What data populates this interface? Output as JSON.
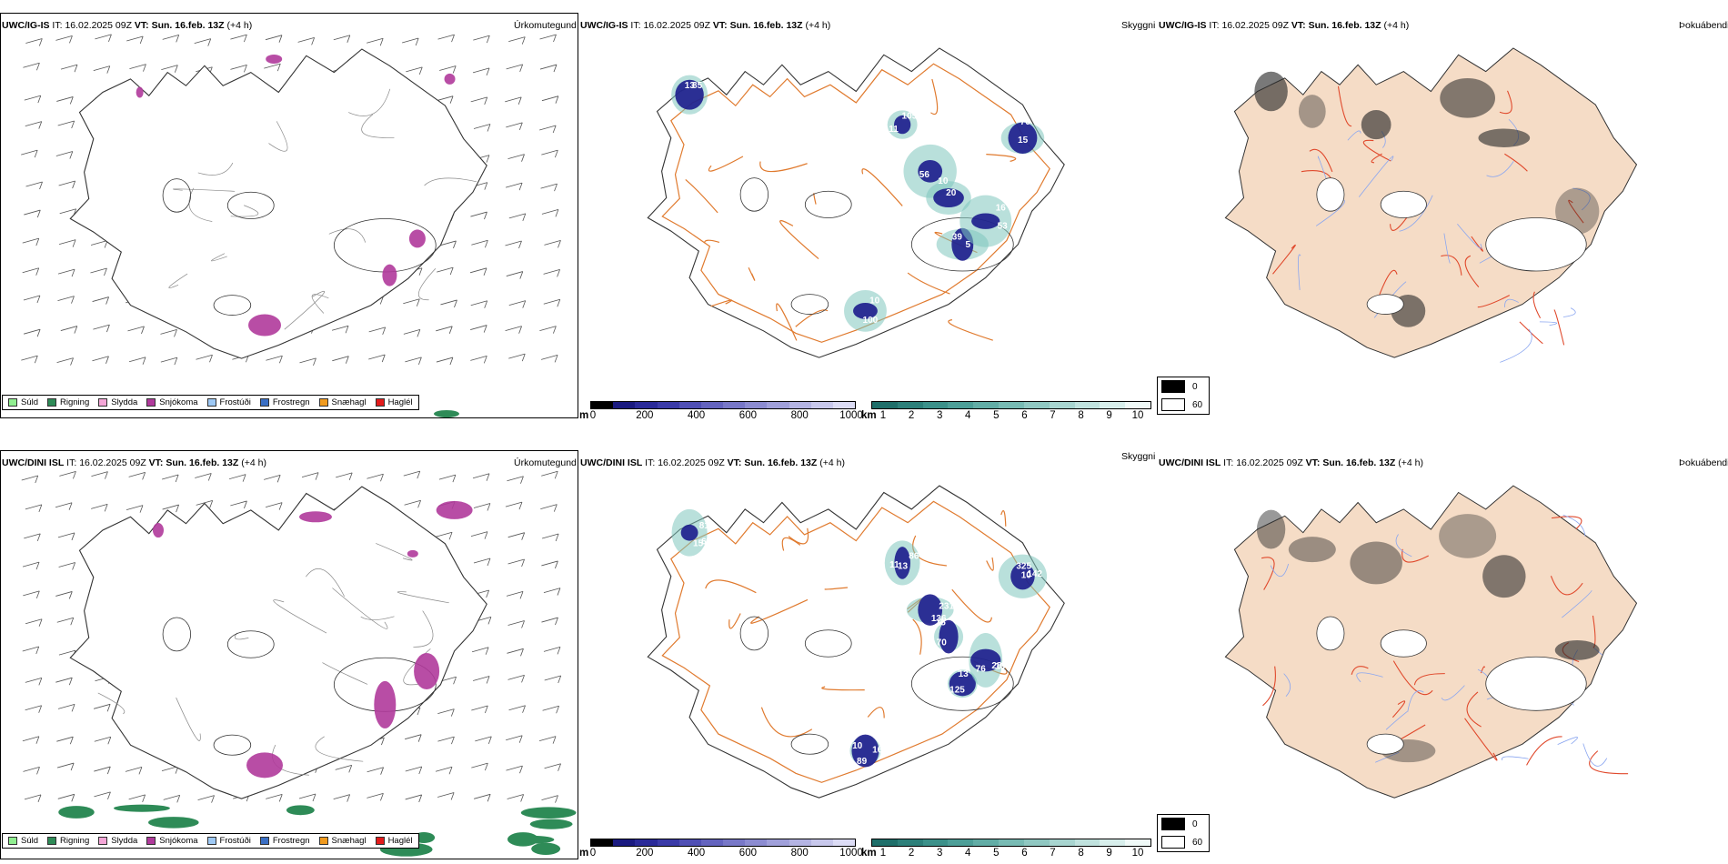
{
  "rows": [
    {
      "model": "UWC/IG-IS",
      "it_label": "IT:",
      "it_value": "16.02.2025 09Z",
      "vt_label": "VT:",
      "vt_value": "Sun. 16.feb. 13Z",
      "lead": "(+4 h)",
      "titles": {
        "precip": "Úrkomutegund",
        "visibility": "Skyggni",
        "cloud": "Þokuábendi"
      },
      "labels": [
        "100",
        "39",
        "53",
        "105",
        "85",
        "70",
        "56",
        "20",
        "10",
        "5",
        "16",
        "11",
        "13",
        "15",
        "10"
      ]
    },
    {
      "model": "UWC/DINI ISL",
      "it_label": "IT:",
      "it_value": "16.02.2025 09Z",
      "vt_label": "VT:",
      "vt_value": "Sun. 16.feb. 13Z",
      "lead": "(+4 h)",
      "titles": {
        "precip": "Úrkomutegund",
        "visibility": "Skyggni",
        "cloud": "Þokuábendi"
      },
      "labels": [
        "160",
        "125",
        "76",
        "86",
        "66",
        "142",
        "231",
        "70",
        "89",
        "13",
        "28",
        "11",
        "15",
        "325",
        "136",
        "15",
        "10",
        "22",
        "100",
        "13",
        "81",
        "10"
      ]
    }
  ],
  "precip_legend": [
    {
      "label": "Súld",
      "color": "#90ee90"
    },
    {
      "label": "Rigning",
      "color": "#2e8b57"
    },
    {
      "label": "Slydda",
      "color": "#f4a6d7"
    },
    {
      "label": "Snjókoma",
      "color": "#b03a9b"
    },
    {
      "label": "Frostúði",
      "color": "#9ec9f5"
    },
    {
      "label": "Frostregn",
      "color": "#3a6fc4"
    },
    {
      "label": "Snæhagl",
      "color": "#f09a1e"
    },
    {
      "label": "Haglél",
      "color": "#e31b1b"
    }
  ],
  "height_scale": {
    "unit": "m",
    "ticks": [
      "0",
      "200",
      "400",
      "600",
      "800",
      "1000"
    ],
    "colors": [
      "#000000",
      "#1a1a80",
      "#2a2a99",
      "#3b3ba8",
      "#5050b5",
      "#6464bf",
      "#7878c8",
      "#8c8cd1",
      "#a0a0da",
      "#b4b4e3",
      "#c8c8ec",
      "#dcdcf5"
    ]
  },
  "distance_scale": {
    "unit": "km",
    "ticks": [
      "1",
      "2",
      "3",
      "4",
      "5",
      "6",
      "7",
      "8",
      "9",
      "10"
    ],
    "colors": [
      "#1f6f6a",
      "#2d807a",
      "#3c918a",
      "#4d9f98",
      "#62ada6",
      "#78bbb4",
      "#90c8c2",
      "#a8d5d0",
      "#c0e2de",
      "#d8efec",
      "#f0faf8"
    ]
  },
  "fog_legend": [
    {
      "value": "0",
      "color": "#000000"
    },
    {
      "value": "60",
      "color": "#ffffff"
    }
  ],
  "colors": {
    "land": "#f5dcc6",
    "road": "#e07a2e",
    "road_red": "#e0492c",
    "river": "#8aa6f0",
    "snow": "#b03a9b",
    "rain": "#2e8b57",
    "vis_dark": "#1c1c8c"
  }
}
